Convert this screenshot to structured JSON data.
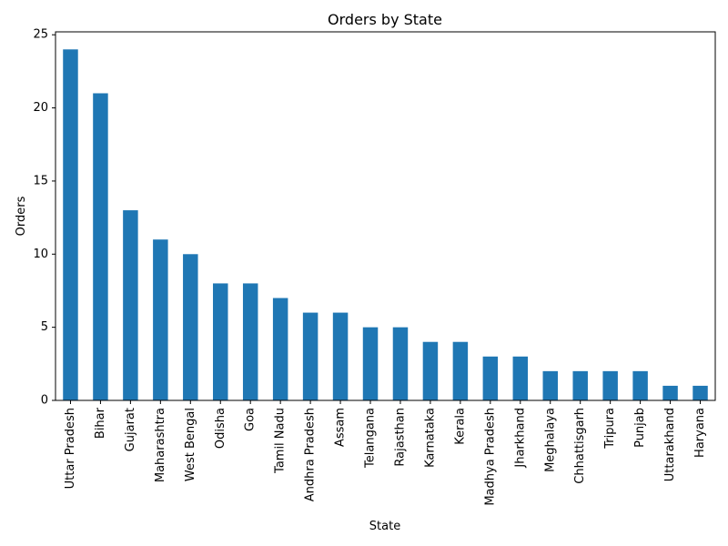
{
  "chart_data": {
    "type": "bar",
    "title": "Orders by State",
    "xlabel": "State",
    "ylabel": "Orders",
    "categories": [
      "Uttar Pradesh",
      "Bihar",
      "Gujarat",
      "Maharashtra",
      "West Bengal",
      "Odisha",
      "Goa",
      "Tamil Nadu",
      "Andhra Pradesh",
      "Assam",
      "Telangana",
      "Rajasthan",
      "Karnataka",
      "Kerala",
      "Madhya Pradesh",
      "Jharkhand",
      "Meghalaya",
      "Chhattisgarh",
      "Tripura",
      "Punjab",
      "Uttarakhand",
      "Haryana"
    ],
    "values": [
      24,
      21,
      13,
      11,
      10,
      8,
      8,
      7,
      6,
      6,
      5,
      5,
      4,
      4,
      3,
      3,
      2,
      2,
      2,
      2,
      1,
      1
    ],
    "ylim": [
      0,
      25.2
    ],
    "yticks": [
      0,
      5,
      10,
      15,
      20,
      25
    ],
    "grid": false,
    "legend": "none",
    "bar_color": "#1f77b4"
  }
}
